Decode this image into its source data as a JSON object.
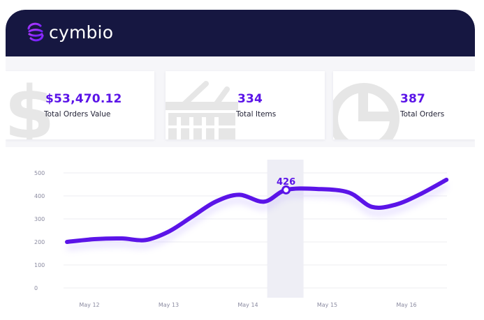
{
  "brand": {
    "name": "cymbio",
    "accent": "#5b14e8",
    "header_bg": "#161741"
  },
  "cards": [
    {
      "value": "$53,470.12",
      "label": "Total Orders Value",
      "icon": "dollar-icon"
    },
    {
      "value": "334",
      "label": "Total Items",
      "icon": "shopping-basket-icon"
    },
    {
      "value": "387",
      "label": "Total Orders",
      "icon": "pie-chart-icon"
    }
  ],
  "chart_data": {
    "type": "line",
    "x_labels": [
      "May 12",
      "May 13",
      "May 14",
      "May 15",
      "May 16"
    ],
    "y_ticks": [
      "0",
      "100",
      "200",
      "300",
      "400",
      "500"
    ],
    "ylim": [
      0,
      500
    ],
    "x": [
      0.0,
      0.35,
      0.7,
      1.0,
      1.3,
      1.6,
      1.9,
      2.2,
      2.52,
      2.8,
      3.2,
      3.6,
      3.9,
      4.2,
      4.5,
      4.85
    ],
    "values": [
      200,
      212,
      215,
      208,
      245,
      310,
      375,
      405,
      375,
      426,
      430,
      415,
      352,
      362,
      405,
      470
    ],
    "highlight": {
      "index": 9,
      "label": "426"
    },
    "color": "#5b14e8",
    "grid": true
  }
}
